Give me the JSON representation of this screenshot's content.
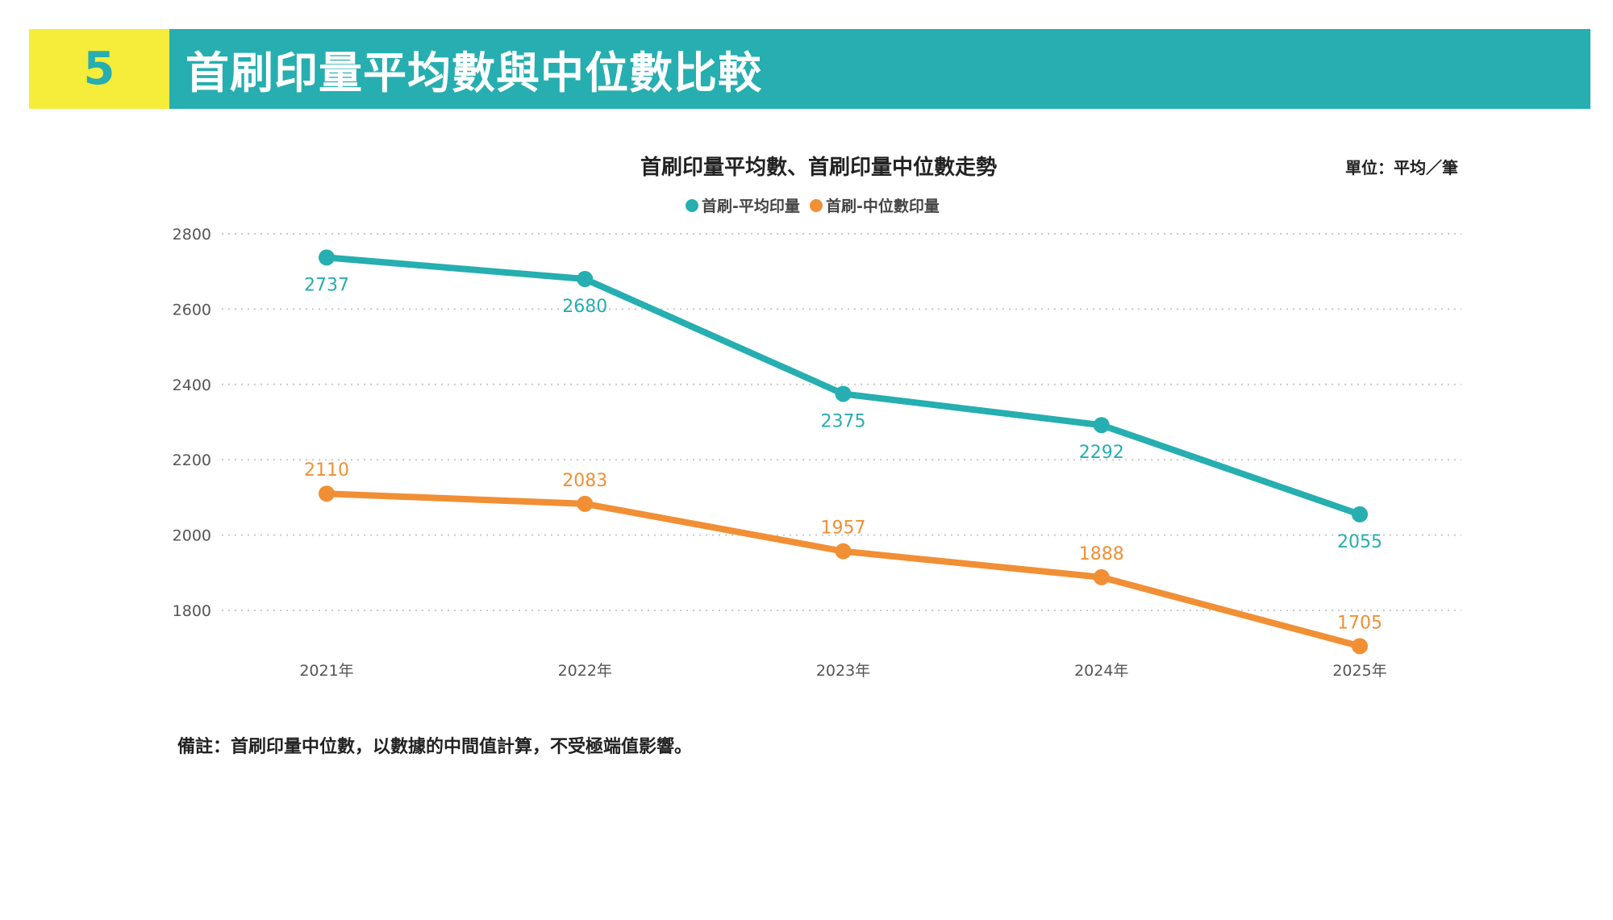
{
  "header": {
    "number": "5",
    "title": "首刷印量平均數與中位數比較"
  },
  "unit": "單位：平均／筆",
  "note": "備註：首刷印量中位數，以數據的中間值計算，不受極端值影響。",
  "colors": {
    "teal": "#26aeb0",
    "orange": "#f18f35",
    "yellow": "#f6ec3a"
  },
  "chart_data": {
    "type": "line",
    "title": "首刷印量平均數、首刷印量中位數走勢",
    "categories": [
      "2021年",
      "2022年",
      "2023年",
      "2024年",
      "2025年"
    ],
    "yticks": [
      "1800",
      "2000",
      "2200",
      "2400",
      "2600",
      "2800"
    ],
    "ylim": [
      1700,
      2800
    ],
    "grid": true,
    "legend_position": "top-center",
    "series": [
      {
        "name": "首刷-平均印量",
        "color": "#26aeb0",
        "values": [
          2737,
          2680,
          2375,
          2292,
          2055
        ],
        "labels": [
          "2737",
          "2680",
          "2375",
          "2292",
          "2055"
        ],
        "label_position": "below"
      },
      {
        "name": "首刷-中位數印量",
        "color": "#f18f35",
        "values": [
          2110,
          2083,
          1957,
          1888,
          1705
        ],
        "labels": [
          "2110",
          "2083",
          "1957",
          "1888",
          "1705"
        ],
        "label_position": "above"
      }
    ]
  }
}
